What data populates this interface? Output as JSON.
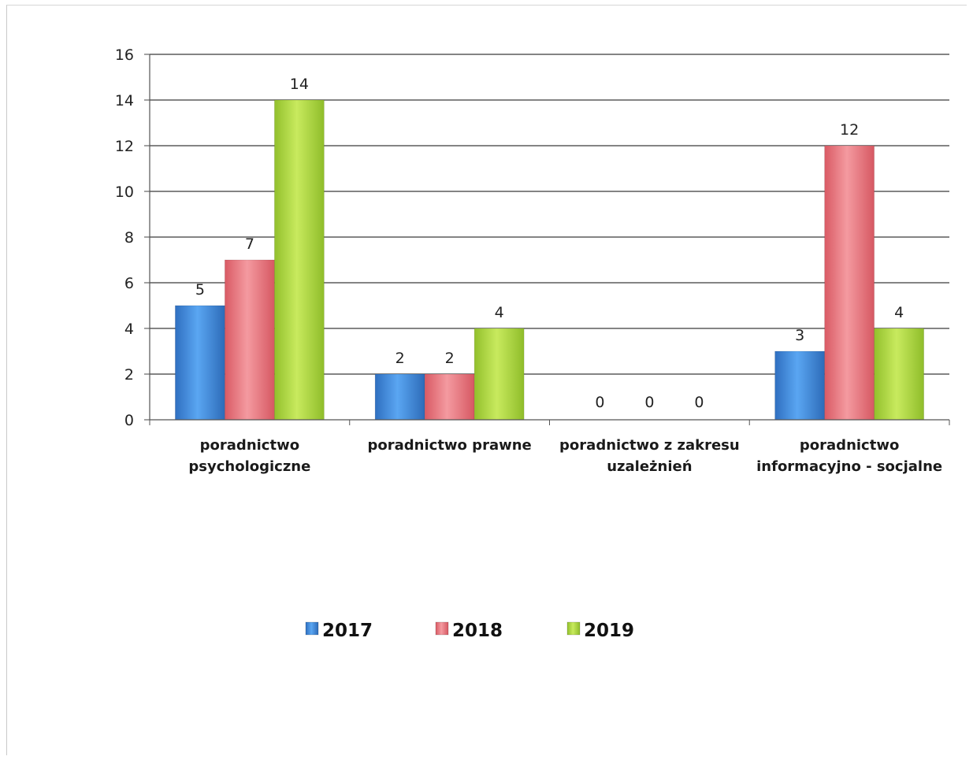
{
  "chart_data": {
    "type": "bar",
    "title": "",
    "xlabel": "",
    "ylabel": "",
    "ylim": [
      0,
      16
    ],
    "yticks": [
      0,
      2,
      4,
      6,
      8,
      10,
      12,
      14,
      16
    ],
    "grid": true,
    "legend_position": "bottom",
    "categories": [
      [
        "poradnictwo",
        "psychologiczne"
      ],
      [
        "poradnictwo prawne"
      ],
      [
        "poradnictwo z zakresu",
        "uzależnień"
      ],
      [
        "poradnictwo",
        "informacyjno - socjalne"
      ]
    ],
    "series": [
      {
        "name": "2017",
        "color": "#4a90e2",
        "values": [
          5,
          2,
          0,
          3
        ]
      },
      {
        "name": "2018",
        "color": "#ee7f86",
        "values": [
          7,
          2,
          0,
          12
        ]
      },
      {
        "name": "2019",
        "color": "#b6dc45",
        "values": [
          14,
          4,
          0,
          4
        ]
      }
    ]
  }
}
